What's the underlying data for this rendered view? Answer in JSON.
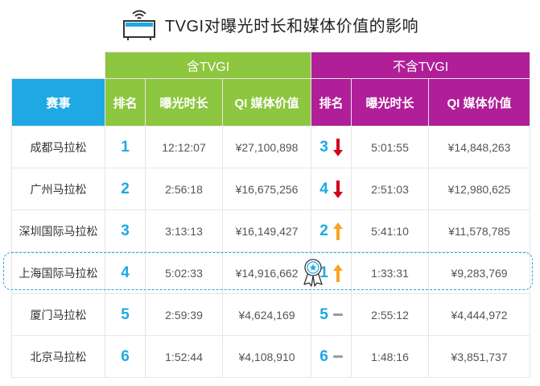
{
  "title": "TVGI对曝光时长和媒体价值的影响",
  "groups": {
    "with_tvgi": "含TVGI",
    "without_tvgi": "不含TVGI"
  },
  "headers": {
    "race": "赛事",
    "rank": "排名",
    "exposure": "曝光时长",
    "value": "QI 媒体价值",
    "rank2": "排名",
    "exposure2": "曝光时长",
    "value2": "QI 媒体价值"
  },
  "rows": [
    {
      "race": "成都马拉松",
      "rank": "1",
      "exposure": "12:12:07",
      "value": "¥27,100,898",
      "rank2": "3",
      "trend": "down",
      "exposure2": "5:01:55",
      "value2": "¥14,848,263"
    },
    {
      "race": "广州马拉松",
      "rank": "2",
      "exposure": "2:56:18",
      "value": "¥16,675,256",
      "rank2": "4",
      "trend": "down",
      "exposure2": "2:51:03",
      "value2": "¥12,980,625"
    },
    {
      "race": "深圳国际马拉松",
      "rank": "3",
      "exposure": "3:13:13",
      "value": "¥16,149,427",
      "rank2": "2",
      "trend": "up",
      "exposure2": "5:41:10",
      "value2": "¥11,578,785"
    },
    {
      "race": "上海国际马拉松",
      "rank": "4",
      "exposure": "5:02:33",
      "value": "¥14,916,662",
      "rank2": "1",
      "trend": "up",
      "exposure2": "1:33:31",
      "value2": "¥9,283,769"
    },
    {
      "race": "厦门马拉松",
      "rank": "5",
      "exposure": "2:59:39",
      "value": "¥4,624,169",
      "rank2": "5",
      "trend": "same",
      "exposure2": "2:55:12",
      "value2": "¥4,444,972"
    },
    {
      "race": "北京马拉松",
      "rank": "6",
      "exposure": "1:52:44",
      "value": "¥4,108,910",
      "rank2": "6",
      "trend": "same",
      "exposure2": "1:48:16",
      "value2": "¥3,851,737"
    }
  ],
  "icons": {
    "title": "tv-wifi-icon",
    "highlight": "award-ribbon-icon",
    "up": "arrow-up-icon",
    "down": "arrow-down-icon",
    "same": "dash-icon"
  },
  "colors": {
    "blue": "#1ea8e4",
    "green": "#8dc63f",
    "purple": "#b01e98",
    "up": "#f5a623",
    "down": "#d0021b",
    "same": "#9b9b9b"
  }
}
